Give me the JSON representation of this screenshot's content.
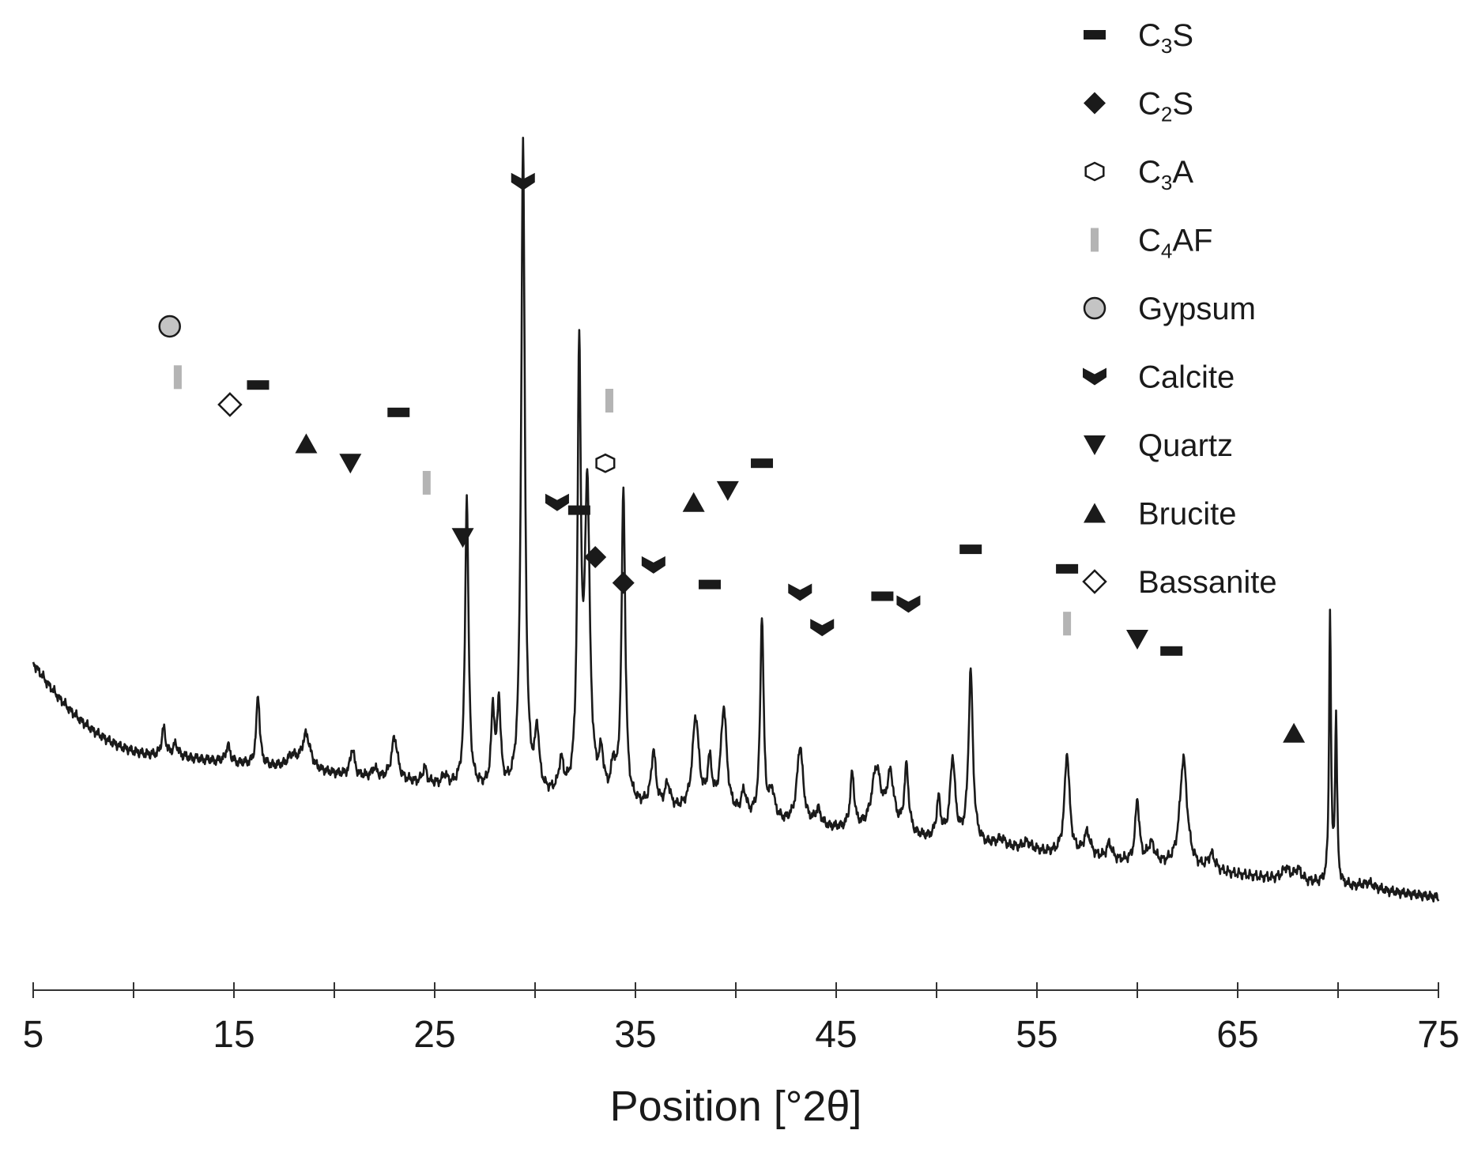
{
  "chart_data": {
    "type": "line",
    "title": "",
    "xlabel": "Position [°2θ]",
    "ylabel": "",
    "xlim": [
      5,
      75
    ],
    "ylim": [
      0,
      100
    ],
    "xticks": [
      "5",
      "15",
      "25",
      "35",
      "45",
      "55",
      "65",
      "75"
    ],
    "minor_tick_step": 5,
    "grid": false,
    "legend_position": "top-right",
    "colors": {
      "trace": "#1a1a1a",
      "c4af_bar": "#b4b4b4",
      "gypsum_fill": "#c4c4c4",
      "open_fill": "#ffffff"
    },
    "background": {
      "start": 36.5,
      "low_x": 12.0,
      "low_y": 24.5,
      "end": 6.5
    },
    "peaks": [
      [
        11.5,
        3.5,
        0.12
      ],
      [
        12.1,
        1.5,
        0.15
      ],
      [
        14.7,
        2.2,
        0.12
      ],
      [
        16.2,
        9.0,
        0.1
      ],
      [
        17.9,
        1.5,
        0.3
      ],
      [
        18.6,
        4.5,
        0.25
      ],
      [
        20.9,
        3.5,
        0.12
      ],
      [
        22.0,
        1.2,
        0.15
      ],
      [
        23.0,
        5.5,
        0.18
      ],
      [
        24.5,
        2.0,
        0.12
      ],
      [
        25.5,
        1.2,
        0.15
      ],
      [
        26.6,
        37.5,
        0.1
      ],
      [
        27.9,
        10.0,
        0.1
      ],
      [
        28.2,
        11.0,
        0.1
      ],
      [
        29.4,
        83.0,
        0.11
      ],
      [
        30.1,
        7.5,
        0.12
      ],
      [
        31.3,
        4.0,
        0.14
      ],
      [
        32.2,
        55.0,
        0.1
      ],
      [
        32.6,
        39.0,
        0.15
      ],
      [
        33.3,
        5.0,
        0.14
      ],
      [
        33.9,
        4.0,
        0.12
      ],
      [
        34.4,
        40.0,
        0.11
      ],
      [
        35.9,
        7.0,
        0.14
      ],
      [
        36.6,
        3.0,
        0.15
      ],
      [
        38.0,
        12.0,
        0.2
      ],
      [
        38.7,
        6.0,
        0.14
      ],
      [
        39.4,
        13.5,
        0.18
      ],
      [
        40.4,
        3.0,
        0.15
      ],
      [
        41.3,
        26.0,
        0.1
      ],
      [
        41.8,
        3.5,
        0.15
      ],
      [
        43.2,
        10.0,
        0.18
      ],
      [
        44.1,
        2.0,
        0.15
      ],
      [
        45.8,
        7.0,
        0.12
      ],
      [
        47.0,
        8.0,
        0.28
      ],
      [
        47.7,
        7.0,
        0.22
      ],
      [
        48.5,
        8.5,
        0.13
      ],
      [
        50.1,
        5.0,
        0.12
      ],
      [
        50.8,
        10.5,
        0.15
      ],
      [
        51.7,
        22.0,
        0.13
      ],
      [
        53.2,
        1.0,
        0.3
      ],
      [
        54.5,
        1.0,
        0.3
      ],
      [
        56.5,
        13.0,
        0.15
      ],
      [
        57.5,
        3.0,
        0.2
      ],
      [
        58.6,
        2.0,
        0.15
      ],
      [
        60.0,
        8.0,
        0.12
      ],
      [
        60.7,
        2.5,
        0.2
      ],
      [
        62.3,
        14.0,
        0.22
      ],
      [
        63.7,
        2.0,
        0.2
      ],
      [
        67.4,
        1.5,
        0.2
      ],
      [
        68.0,
        1.5,
        0.2
      ],
      [
        69.6,
        35.0,
        0.055
      ],
      [
        69.9,
        21.0,
        0.06
      ],
      [
        71.5,
        0.8,
        0.4
      ]
    ],
    "series": [
      {
        "name": "C3S",
        "main": "C",
        "sub": "3",
        "rest": "S",
        "shape": "dash",
        "markers": [
          [
            16.2,
            72.0
          ],
          [
            23.2,
            68.5
          ],
          [
            32.2,
            56.0
          ],
          [
            38.7,
            46.5
          ],
          [
            41.3,
            62.0
          ],
          [
            47.3,
            45.0
          ],
          [
            51.7,
            51.0
          ],
          [
            56.5,
            48.5
          ],
          [
            61.7,
            38.0
          ]
        ]
      },
      {
        "name": "C2S",
        "main": "C",
        "sub": "2",
        "rest": "S",
        "shape": "diamond",
        "markers": [
          [
            33.0,
            50.0
          ],
          [
            34.4,
            46.7
          ]
        ]
      },
      {
        "name": "C3A",
        "main": "C",
        "sub": "3",
        "rest": "A",
        "shape": "hexagon",
        "markers": [
          [
            33.5,
            62.0
          ]
        ]
      },
      {
        "name": "C4AF",
        "main": "C",
        "sub": "4",
        "rest": "AF",
        "shape": "bar",
        "markers": [
          [
            12.2,
            73.0
          ],
          [
            24.6,
            59.5
          ],
          [
            33.7,
            70.0
          ],
          [
            56.5,
            41.5
          ]
        ]
      },
      {
        "name": "Gypsum",
        "main": "Gypsum",
        "sub": "",
        "rest": "",
        "shape": "circle",
        "markers": [
          [
            11.8,
            79.5
          ]
        ]
      },
      {
        "name": "Calcite",
        "main": "Calcite",
        "sub": "",
        "rest": "",
        "shape": "chevron",
        "markers": [
          [
            29.4,
            98.0
          ],
          [
            31.1,
            57.0
          ],
          [
            35.9,
            49.0
          ],
          [
            43.2,
            45.5
          ],
          [
            44.3,
            41.0
          ],
          [
            48.6,
            44.0
          ]
        ]
      },
      {
        "name": "Quartz",
        "main": "Quartz",
        "sub": "",
        "rest": "",
        "shape": "tri-down",
        "markers": [
          [
            26.4,
            52.5
          ],
          [
            20.8,
            62.0
          ],
          [
            39.6,
            58.5
          ],
          [
            60.0,
            39.5
          ]
        ]
      },
      {
        "name": "Brucite",
        "main": "Brucite",
        "sub": "",
        "rest": "",
        "shape": "tri-up",
        "markers": [
          [
            18.6,
            64.5
          ],
          [
            37.9,
            57.0
          ],
          [
            67.8,
            27.5
          ]
        ]
      },
      {
        "name": "Bassanite",
        "main": "Bassanite",
        "sub": "",
        "rest": "",
        "shape": "diamond-open",
        "markers": [
          [
            14.8,
            69.5
          ]
        ]
      }
    ]
  }
}
